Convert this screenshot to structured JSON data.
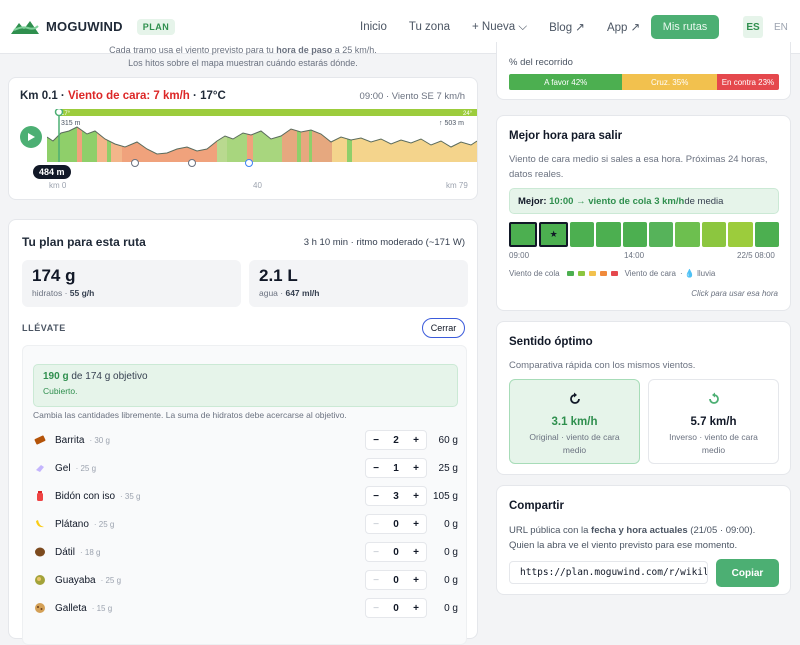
{
  "header": {
    "logo_text": "MOGUWIND",
    "plan_badge": "PLAN",
    "nav": [
      "Inicio",
      "Tu zona",
      "+ Nueva ⌵",
      "Blog ↗",
      "App ↗"
    ],
    "cta": "Mis rutas",
    "lang_active": "ES",
    "lang_other": "EN"
  },
  "note": {
    "line1_pre": "Cada tramo usa el viento previsto para tu ",
    "line1_bold": "hora de paso",
    "line1_post": " a 25 km/h.",
    "line2": "Los hitos sobre el mapa muestran cuándo estarás dónde."
  },
  "elevation": {
    "km": "Km 0.1",
    "wind_label": "Viento de cara: 7 km/h",
    "temp": "17°C",
    "meta": "09:00 · Viento SE 7 km/h",
    "min_elev": "315 m",
    "max_elev": "↑ 503 m",
    "temp_left": "17°",
    "temp_right": "24°",
    "badge": "484 m",
    "km_labels": [
      "km 0",
      "40",
      "km 79"
    ]
  },
  "plan": {
    "title": "Tu plan para esta ruta",
    "meta": "3 h 10 min · ritmo moderado (~171 W)",
    "carbs_value": "174 g",
    "carbs_label": "hidratos · ",
    "carbs_rate": "55 g/h",
    "water_value": "2.1 L",
    "water_label": "agua · ",
    "water_rate": "647 ml/h",
    "section": "LLÉVATE",
    "close": "Cerrar",
    "target_amount": "190 g",
    "target_rest": " de 174 g objetivo",
    "target_status": "Cubierto.",
    "hint": "Cambia las cantidades libremente. La suma de hidratos debe acercarse al objetivo.",
    "items": [
      {
        "name": "Barrita",
        "weight": "· 30 g",
        "qty": "2",
        "total": "60 g",
        "icon": "bar-icon"
      },
      {
        "name": "Gel",
        "weight": "· 25 g",
        "qty": "1",
        "total": "25 g",
        "icon": "gel-icon"
      },
      {
        "name": "Bidón con iso",
        "weight": "· 35 g",
        "qty": "3",
        "total": "105 g",
        "icon": "bottle-icon"
      },
      {
        "name": "Plátano",
        "weight": "· 25 g",
        "qty": "0",
        "total": "0 g",
        "icon": "banana-icon"
      },
      {
        "name": "Dátil",
        "weight": "· 18 g",
        "qty": "0",
        "total": "0 g",
        "icon": "date-icon"
      },
      {
        "name": "Guayaba",
        "weight": "· 25 g",
        "qty": "0",
        "total": "0 g",
        "icon": "guava-icon"
      },
      {
        "name": "Galleta",
        "weight": "· 15 g",
        "qty": "0",
        "total": "0 g",
        "icon": "cookie-icon"
      }
    ]
  },
  "route_pct": {
    "title": "% del recorrido",
    "segments": [
      {
        "label": "A favor 42%",
        "value": 42,
        "color": "#4caf50"
      },
      {
        "label": "Cruz. 35%",
        "value": 35,
        "color": "#f2c14e"
      },
      {
        "label": "En contra 23%",
        "value": 23,
        "color": "#e5484d"
      }
    ]
  },
  "best_time": {
    "title": "Mejor hora para salir",
    "desc": "Viento de cara medio si sales a esa hora. Próximas 24 horas, datos reales.",
    "best_label": "Mejor:",
    "best_time": "10:00",
    "best_detail": "→ viento de cola 3 km/h",
    "best_suffix": " de media",
    "star": "★",
    "hour_colors": [
      "#4caf50",
      "#4caf50",
      "#4caf50",
      "#4caf50",
      "#4caf50",
      "#56b35a",
      "#6dbf4f",
      "#8cc63f",
      "#9ccc3c",
      "#4caf50"
    ],
    "hour_labels": [
      "09:00",
      "14:00",
      "22/5 08:00"
    ],
    "legend_left": "Viento de cola",
    "legend_mid": "Viento de cara",
    "legend_rain": "· 💧 lluvia",
    "legend_colors": [
      "#4caf50",
      "#8cc63f",
      "#f2c14e",
      "#f08a3c",
      "#e5484d"
    ],
    "click_hint": "Click para usar esa hora"
  },
  "direction": {
    "title": "Sentido óptimo",
    "desc": "Comparativa rápida con los mismos vientos.",
    "options": [
      {
        "speed": "3.1 km/h",
        "label": "Original · viento de cara medio"
      },
      {
        "speed": "5.7 km/h",
        "label": "Inverso · viento de cara medio"
      }
    ]
  },
  "share": {
    "title": "Compartir",
    "desc_pre": "URL pública con la ",
    "desc_bold": "fecha y hora actuales",
    "desc_post": " (21/05 · 09:00).",
    "desc_line2": "Quien la abra ve el viento previsto para ese momento.",
    "url": "https://plan.moguwind.com/r/wikil",
    "copy": "Copiar"
  }
}
